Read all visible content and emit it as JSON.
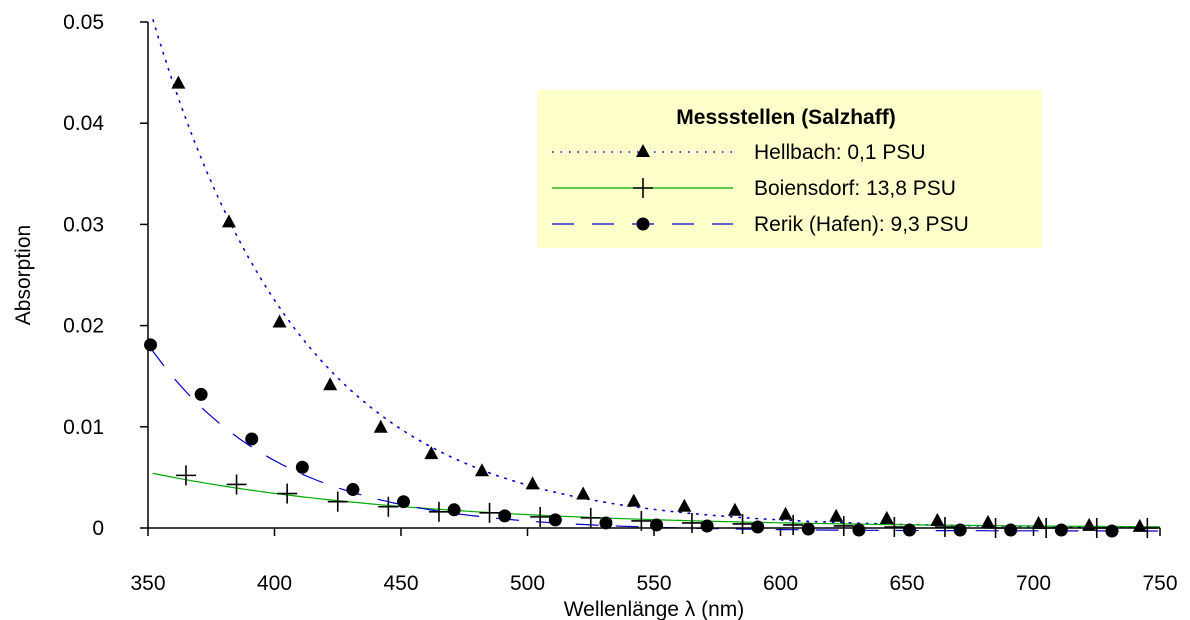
{
  "chart_data": {
    "type": "line",
    "title": "",
    "xlabel": "Wellenlänge λ (nm)",
    "ylabel": "Absorption",
    "xlim": [
      350,
      750
    ],
    "ylim": [
      0,
      0.05
    ],
    "x_ticks": [
      "350",
      "400",
      "450",
      "500",
      "550",
      "600",
      "650",
      "700",
      "750"
    ],
    "x_tick_values": [
      350,
      400,
      450,
      500,
      550,
      600,
      650,
      700,
      750
    ],
    "y_ticks": [
      "0",
      "0.01",
      "0.02",
      "0.03",
      "0.04",
      "0.05"
    ],
    "y_tick_values": [
      0,
      0.01,
      0.02,
      0.03,
      0.04,
      0.05
    ],
    "grid": false,
    "legend": {
      "title": "Messstellen (Salzhaff)",
      "placement": "top-right",
      "background": "#ffffcc"
    },
    "series": [
      {
        "name": "Hellbach: 0,1 PSU",
        "color": "#0000cc",
        "line_style": "dotted",
        "marker": "triangle",
        "curve": {
          "a": 0.0502,
          "k": 0.0167,
          "c": 0.0,
          "x0": 352
        },
        "x": [
          362,
          382,
          402,
          422,
          442,
          462,
          482,
          502,
          522,
          542,
          562,
          582,
          602,
          622,
          642,
          662,
          682,
          702,
          722,
          742
        ],
        "values": [
          0.0439,
          0.0302,
          0.0203,
          0.0141,
          0.0099,
          0.0073,
          0.0056,
          0.0043,
          0.0033,
          0.0026,
          0.0021,
          0.0017,
          0.0013,
          0.0011,
          0.0009,
          0.0007,
          0.0005,
          0.0004,
          0.0002,
          0.0001
        ]
      },
      {
        "name": "Boiensdorf: 13,8 PSU",
        "color": "#00aa00",
        "line_style": "solid",
        "marker": "plus",
        "curve": {
          "a": 0.0054,
          "k": 0.0095,
          "c": 0.0,
          "x0": 352
        },
        "x": [
          365,
          385,
          405,
          425,
          445,
          465,
          485,
          505,
          525,
          545,
          565,
          585,
          605,
          625,
          645,
          665,
          685,
          705,
          725,
          745
        ],
        "values": [
          0.0052,
          0.0043,
          0.0034,
          0.0026,
          0.0021,
          0.0016,
          0.0015,
          0.0011,
          0.001,
          0.0007,
          0.0005,
          0.0004,
          0.0003,
          0.0002,
          0.0001,
          0.0001,
          0.0,
          0.0,
          0.0,
          0.0
        ]
      },
      {
        "name": "Rerik (Hafen): 9,3 PSU",
        "color": "#0000cc",
        "line_style": "dashed",
        "marker": "circle",
        "curve": {
          "a": 0.0181,
          "k": 0.0195,
          "c": -0.0003,
          "x0": 351
        },
        "x": [
          351,
          371,
          391,
          411,
          431,
          451,
          471,
          491,
          511,
          531,
          551,
          571,
          591,
          611,
          631,
          651,
          671,
          691,
          711,
          731
        ],
        "values": [
          0.0181,
          0.0132,
          0.0088,
          0.006,
          0.0038,
          0.0026,
          0.0018,
          0.0012,
          0.0008,
          0.0005,
          0.0003,
          0.0002,
          0.0001,
          -0.0001,
          -0.0002,
          -0.0002,
          -0.0002,
          -0.0002,
          -0.0002,
          -0.0003
        ]
      }
    ]
  }
}
